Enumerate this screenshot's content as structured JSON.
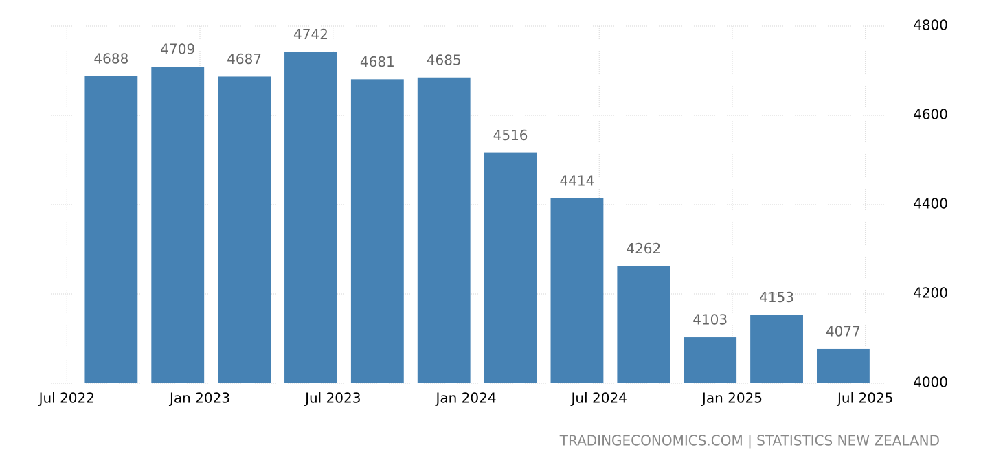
{
  "chart_data": {
    "type": "bar",
    "x": [
      "2022-09",
      "2022-12",
      "2023-03",
      "2023-06",
      "2023-09",
      "2023-12",
      "2024-03",
      "2024-06",
      "2024-09",
      "2024-12",
      "2025-03",
      "2025-06"
    ],
    "values": [
      4688,
      4709,
      4687,
      4742,
      4681,
      4685,
      4516,
      4414,
      4262,
      4103,
      4153,
      4077
    ],
    "color": "#4682b4",
    "xlim": [
      "2022-06",
      "2025-08"
    ],
    "xticks": [
      {
        "value": "2022-07",
        "label": "Jul 2022"
      },
      {
        "value": "2023-01",
        "label": "Jan 2023"
      },
      {
        "value": "2023-07",
        "label": "Jul 2023"
      },
      {
        "value": "2024-01",
        "label": "Jan 2024"
      },
      {
        "value": "2024-07",
        "label": "Jul 2024"
      },
      {
        "value": "2025-01",
        "label": "Jan 2025"
      },
      {
        "value": "2025-07",
        "label": "Jul 2025"
      }
    ],
    "ylim": [
      4000,
      4800
    ],
    "yticks": [
      4000,
      4200,
      4400,
      4600,
      4800
    ],
    "grid": true,
    "source": "TRADINGECONOMICS.COM | STATISTICS NEW ZEALAND"
  }
}
